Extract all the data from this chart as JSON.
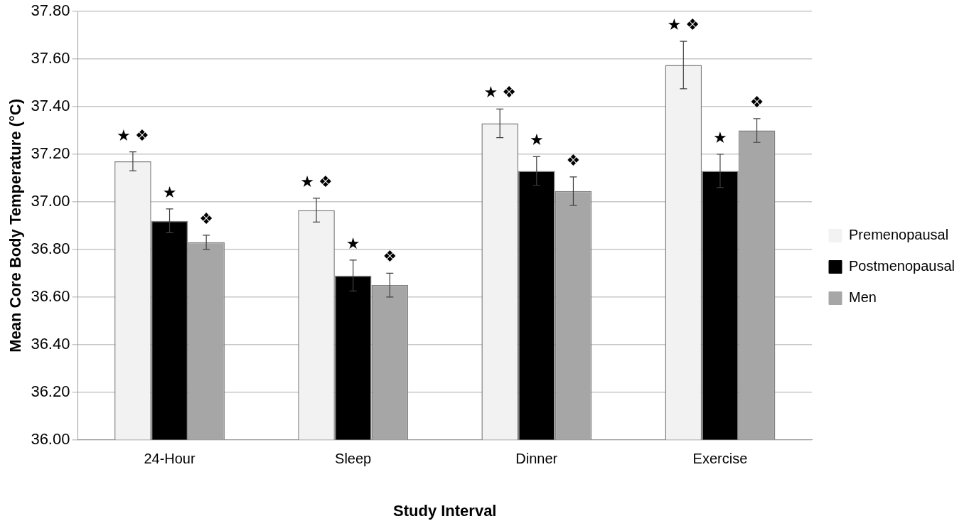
{
  "chart_data": {
    "type": "bar",
    "xlabel": "Study Interval",
    "ylabel": "Mean Core Body Temperature (°C)",
    "categories": [
      "24-Hour",
      "Sleep",
      "Dinner",
      "Exercise"
    ],
    "series": [
      {
        "name": "Premenopausal",
        "color": "#f2f2f2",
        "values": [
          37.17,
          36.965,
          37.33,
          37.575
        ],
        "errors": [
          0.04,
          0.05,
          0.06,
          0.1
        ]
      },
      {
        "name": "Postmenopausal",
        "color": "#000000",
        "values": [
          36.92,
          36.69,
          37.13,
          37.13
        ],
        "errors": [
          0.05,
          0.065,
          0.06,
          0.07
        ]
      },
      {
        "name": "Men",
        "color": "#a6a6a6",
        "values": [
          36.83,
          36.65,
          37.045,
          37.3
        ],
        "errors": [
          0.03,
          0.05,
          0.06,
          0.05
        ]
      }
    ],
    "ylim": [
      36,
      37.8
    ],
    "yticks": [
      {
        "value": 36,
        "label": "36.00"
      },
      {
        "value": 36.2,
        "label": "36.20"
      },
      {
        "value": 36.4,
        "label": "36.40"
      },
      {
        "value": 36.6,
        "label": "36.60"
      },
      {
        "value": 36.8,
        "label": "36.80"
      },
      {
        "value": 37,
        "label": "37.00"
      },
      {
        "value": 37.2,
        "label": "37.20"
      },
      {
        "value": 37.4,
        "label": "37.40"
      },
      {
        "value": 37.6,
        "label": "37.60"
      },
      {
        "value": 37.8,
        "label": "37.80"
      }
    ],
    "grid": "y",
    "legend": "right",
    "annotations": [
      "★ ❖",
      "★",
      "❖",
      "★ ❖",
      "★",
      "❖",
      "★ ❖",
      "★",
      "❖",
      "★ ❖",
      "★",
      "❖"
    ]
  }
}
